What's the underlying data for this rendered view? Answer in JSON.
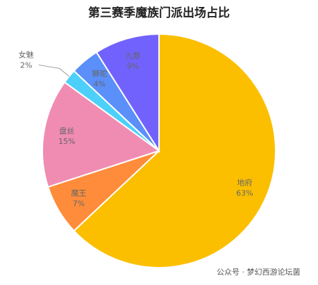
{
  "chart_data": {
    "type": "pie",
    "title": "第三赛季魔族门派出场占比",
    "categories": [
      "地府",
      "魔王",
      "盘丝",
      "女魅",
      "狮驼",
      "九黎"
    ],
    "values": [
      63,
      7,
      15,
      2,
      4,
      9
    ],
    "value_labels": [
      "63%",
      "7%",
      "15%",
      "2%",
      "4%",
      "9%"
    ],
    "colors": [
      "#fbbf00",
      "#fe8c3a",
      "#f08cb2",
      "#4cd0fa",
      "#5b8ff9",
      "#7262fd"
    ],
    "watermark": "公众号 · 梦幻西游论坛菌"
  }
}
